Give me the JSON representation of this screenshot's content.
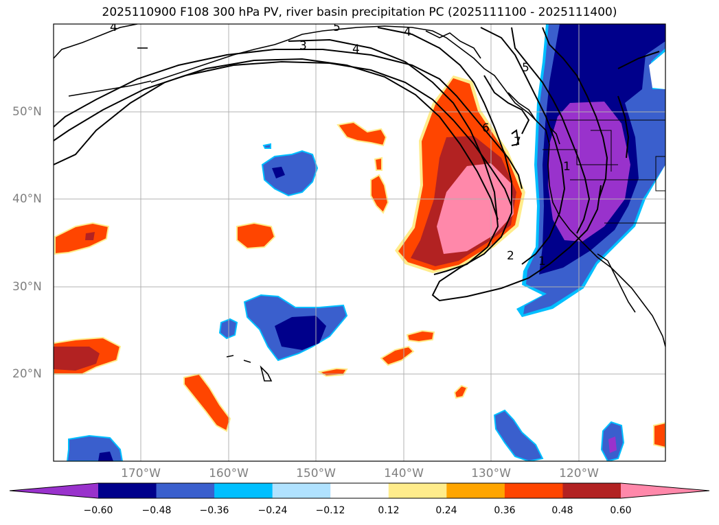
{
  "title": "2025110900 F108 300 hPa PV, river basin precipitation PC (2025111100 - 2025111400)",
  "latitude_labels": [
    "50°N",
    "40°N",
    "30°N",
    "20°N"
  ],
  "longitude_labels": [
    "170°W",
    "160°W",
    "150°W",
    "140°W",
    "130°W",
    "120°W"
  ],
  "contour_labels": [
    "4",
    "5",
    "4",
    "3",
    "4",
    "5",
    "6",
    "7",
    "1",
    "2",
    "1"
  ],
  "colorbar": {
    "ticks": [
      "−0.60",
      "−0.48",
      "−0.36",
      "−0.24",
      "−0.12",
      "0.12",
      "0.24",
      "0.36",
      "0.48",
      "0.60"
    ],
    "colors": [
      "#9932cc",
      "#00008b",
      "#3a5fcd",
      "#00bfff",
      "#b0e2ff",
      "#ffffff",
      "#ffec8b",
      "#ffa500",
      "#ff4500",
      "#b22222",
      "#ff88aa"
    ]
  },
  "fill_colors": {
    "neg_low": "#00bfff",
    "neg_mid": "#3a5fcd",
    "neg_high": "#00008b",
    "neg_max": "#9932cc",
    "pos_low": "#ffec8b",
    "pos_mid": "#ff4500",
    "pos_high": "#b22222",
    "pos_max": "#ff88aa"
  }
}
